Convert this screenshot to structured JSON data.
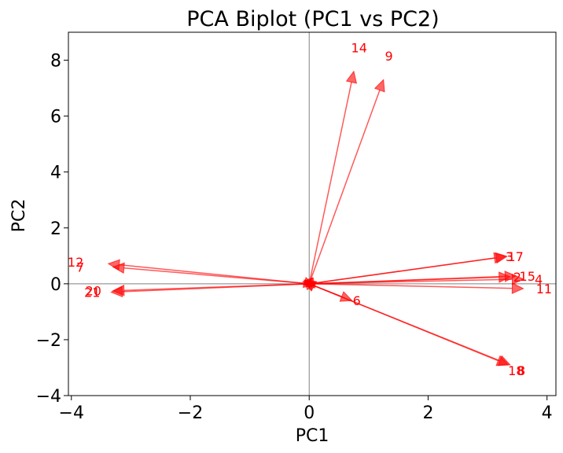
{
  "chart_data": {
    "type": "scatter",
    "subtype": "pca-biplot",
    "title": "PCA Biplot (PC1 vs PC2)",
    "xlabel": "PC1",
    "ylabel": "PC2",
    "xlim": [
      -4.05,
      4.15
    ],
    "ylim": [
      -4.0,
      9.0
    ],
    "xticks": [
      -4,
      -2,
      0,
      2,
      4
    ],
    "yticks": [
      -4,
      -2,
      0,
      2,
      4,
      6,
      8
    ],
    "xtick_labels": [
      "−4",
      "−2",
      "0",
      "2",
      "4"
    ],
    "ytick_labels": [
      "−4",
      "−2",
      "0",
      "2",
      "4",
      "6",
      "8"
    ],
    "grid": false,
    "reference_lines": {
      "x": 0,
      "y": 0
    },
    "arrow_color": "#ff0000",
    "vectors": [
      {
        "label": "14",
        "x": 0.75,
        "y": 7.6,
        "lx": 0.84,
        "ly": 8.45
      },
      {
        "label": "9",
        "x": 1.25,
        "y": 7.3,
        "lx": 1.34,
        "ly": 8.15
      },
      {
        "label": "3",
        "x": 3.3,
        "y": 0.98,
        "lx": 3.37,
        "ly": 0.98
      },
      {
        "label": "17",
        "x": 3.33,
        "y": 0.98,
        "lx": 3.47,
        "ly": 0.98
      },
      {
        "label": "2",
        "x": 3.38,
        "y": 0.25,
        "lx": 3.5,
        "ly": 0.25
      },
      {
        "label": "15",
        "x": 3.48,
        "y": 0.28,
        "lx": 3.67,
        "ly": 0.28
      },
      {
        "label": "4",
        "x": 3.6,
        "y": 0.17,
        "lx": 3.86,
        "ly": 0.17
      },
      {
        "label": "11",
        "x": 3.6,
        "y": -0.17,
        "lx": 3.95,
        "ly": -0.17
      },
      {
        "label": "6",
        "x": 0.72,
        "y": -0.6,
        "lx": 0.8,
        "ly": -0.6
      },
      {
        "label": "18",
        "x": 3.35,
        "y": -2.9,
        "lx": 3.48,
        "ly": -3.1
      },
      {
        "label": "8",
        "x": 3.38,
        "y": -2.9,
        "lx": 3.57,
        "ly": -3.1
      },
      {
        "label": "12",
        "x": -3.38,
        "y": 0.72,
        "lx": -3.93,
        "ly": 0.78
      },
      {
        "label": "7",
        "x": -3.3,
        "y": 0.6,
        "lx": -3.85,
        "ly": 0.6
      },
      {
        "label": "20",
        "x": -3.3,
        "y": -0.25,
        "lx": -3.63,
        "ly": -0.25
      },
      {
        "label": "21",
        "x": -3.33,
        "y": -0.3,
        "lx": -3.65,
        "ly": -0.3
      },
      {
        "label": "",
        "x": 0.12,
        "y": 0.08
      },
      {
        "label": "",
        "x": -0.08,
        "y": 0.1
      },
      {
        "label": "",
        "x": 0.04,
        "y": -0.22
      },
      {
        "label": "",
        "x": 0.1,
        "y": -0.06
      },
      {
        "label": "",
        "x": -0.1,
        "y": -0.04
      }
    ]
  }
}
